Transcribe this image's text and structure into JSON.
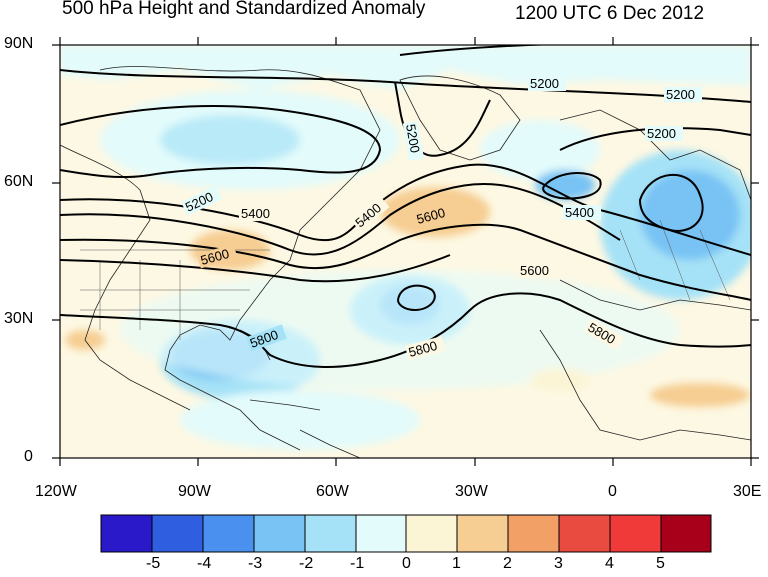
{
  "title_left": "500 hPa Height and Standardized Anomaly",
  "title_right": "1200 UTC 6 Dec 2012",
  "lat_labels": [
    "90N",
    "60N",
    "30N",
    "0"
  ],
  "lon_labels": [
    "120W",
    "90W",
    "60W",
    "30W",
    "0",
    "30E"
  ],
  "contour_labels": [
    "5200",
    "5200",
    "5200",
    "5200",
    "5200",
    "5400",
    "5400",
    "5400",
    "5600",
    "5600",
    "5600",
    "5800",
    "5800",
    "5800"
  ],
  "colorbar": {
    "labels": [
      "-5",
      "-4",
      "-3",
      "-2",
      "-1",
      "0",
      "1",
      "2",
      "3",
      "4",
      "5"
    ],
    "colors": [
      "#2a19c8",
      "#2f5ee0",
      "#4a90ee",
      "#78c3f4",
      "#a6e2f7",
      "#e3fbfb",
      "#fbf5d6",
      "#f6cd92",
      "#f2a066",
      "#ea4b41",
      "#f03a3a",
      "#a8001a"
    ]
  }
}
